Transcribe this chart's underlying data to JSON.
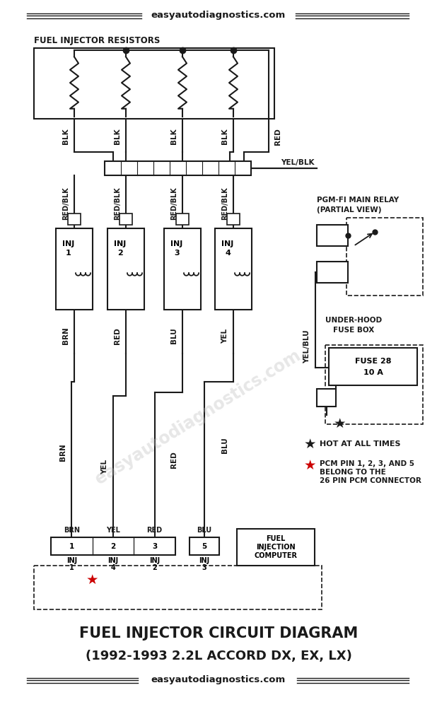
{
  "title_top": "easyautodiagnostics.com",
  "title_bottom1": "FUEL INJECTOR CIRCUIT DIAGRAM",
  "title_bottom2": "(1992-1993 2.2L ACCORD DX, EX, LX)",
  "title_bottom3": "easyautodiagnostics.com",
  "resistors_label": "FUEL INJECTOR RESISTORS",
  "relay_label1": "PGM-FI MAIN RELAY",
  "relay_label2": "(PARTIAL VIEW)",
  "fuse_label1": "UNDER-HOOD",
  "fuse_label2": "FUSE BOX",
  "fuse_inner1": "FUSE 28",
  "fuse_inner2": "10 A",
  "fi_lines": [
    "FUEL",
    "INJECTION",
    "COMPUTER"
  ],
  "note1_sym": "*",
  "note1_txt": "HOT AT ALL TIMES",
  "note2_sym": "*",
  "note2a": "PCM PIN 1, 2, 3, AND 5",
  "note2b": "BELONG TO THE",
  "note2c": "26 PIN PCM CONNECTOR",
  "wire_top_labels": [
    "BLK",
    "BLK",
    "BLK",
    "BLK",
    "RED"
  ],
  "wire_mid_labels": [
    "RED/BLK",
    "RED/BLK",
    "RED/BLK",
    "RED/BLK"
  ],
  "wire_bot_labels": [
    "BRN",
    "RED",
    "BLU",
    "YEL"
  ],
  "wire_yelblk": "YEL/BLK",
  "wire_yelblue": "YEL/BLU",
  "inj_labels": [
    "INJ\n1",
    "INJ\n2",
    "INJ\n3",
    "INJ\n4"
  ],
  "pcm_pins": [
    "1",
    "2",
    "3",
    "5"
  ],
  "pcm_wire_above": [
    "BRN",
    "YEL",
    "RED",
    "BLU"
  ],
  "pcm_inj_below": [
    [
      "INJ",
      "1"
    ],
    [
      "INJ",
      "4"
    ],
    [
      "INJ",
      "2"
    ],
    [
      "INJ",
      "3"
    ]
  ],
  "bg_color": "#ffffff",
  "line_color": "#1a1a1a",
  "red_color": "#cc0000",
  "watermark": "easyautodiagnostics.com"
}
